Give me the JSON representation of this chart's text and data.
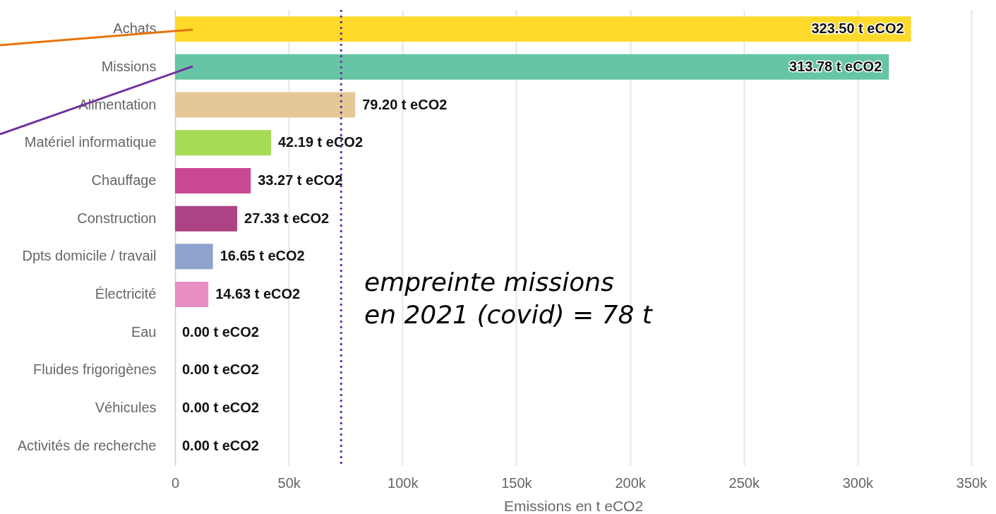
{
  "chart_data": {
    "type": "bar",
    "orientation": "horizontal",
    "categories": [
      "Achats",
      "Missions",
      "Alimentation",
      "Matériel informatique",
      "Chauffage",
      "Construction",
      "Dpts domicile / travail",
      "Électricité",
      "Eau",
      "Fluides frigorigènes",
      "Véhicules",
      "Activités de recherche"
    ],
    "values": [
      323.5,
      313.78,
      79.2,
      42.19,
      33.27,
      27.33,
      16.65,
      14.63,
      0,
      0,
      0,
      0
    ],
    "colors": [
      "#fdd92a",
      "#66c5a5",
      "#e5c896",
      "#a6db55",
      "#c94892",
      "#ad4384",
      "#8ea3cd",
      "#e88ec3",
      "#7fb8da",
      "#9ad0c2",
      "#c9b2d6",
      "#f2b880"
    ],
    "value_labels": [
      "323.50 t eCO2",
      "313.78 t eCO2",
      "79.20 t eCO2",
      "42.19 t eCO2",
      "33.27 t eCO2",
      "27.33 t eCO2",
      "16.65 t eCO2",
      "14.63 t eCO2",
      "0.00 t eCO2",
      "0.00 t eCO2",
      "0.00 t eCO2",
      "0.00 t eCO2"
    ],
    "xlabel": "Emissions en t eCO2",
    "xlim": [
      0,
      350
    ],
    "xticks": [
      0,
      {
        "value": 50,
        "label": "50k"
      },
      {
        "value": 100,
        "label": "100k"
      },
      {
        "value": 150,
        "label": "150k"
      },
      {
        "value": 200,
        "label": "200k"
      },
      {
        "value": 250,
        "label": "250k"
      },
      {
        "value": 300,
        "label": "300k"
      },
      {
        "value": 350,
        "label": "350k"
      }
    ],
    "grid": "x",
    "ref_lines": [
      {
        "axis": "x",
        "value": 73,
        "color": "#6a35a0",
        "line_style": "dotted"
      }
    ],
    "annotations": [
      "empreinte missions\nen 2021 (covid) = 78 t"
    ]
  }
}
